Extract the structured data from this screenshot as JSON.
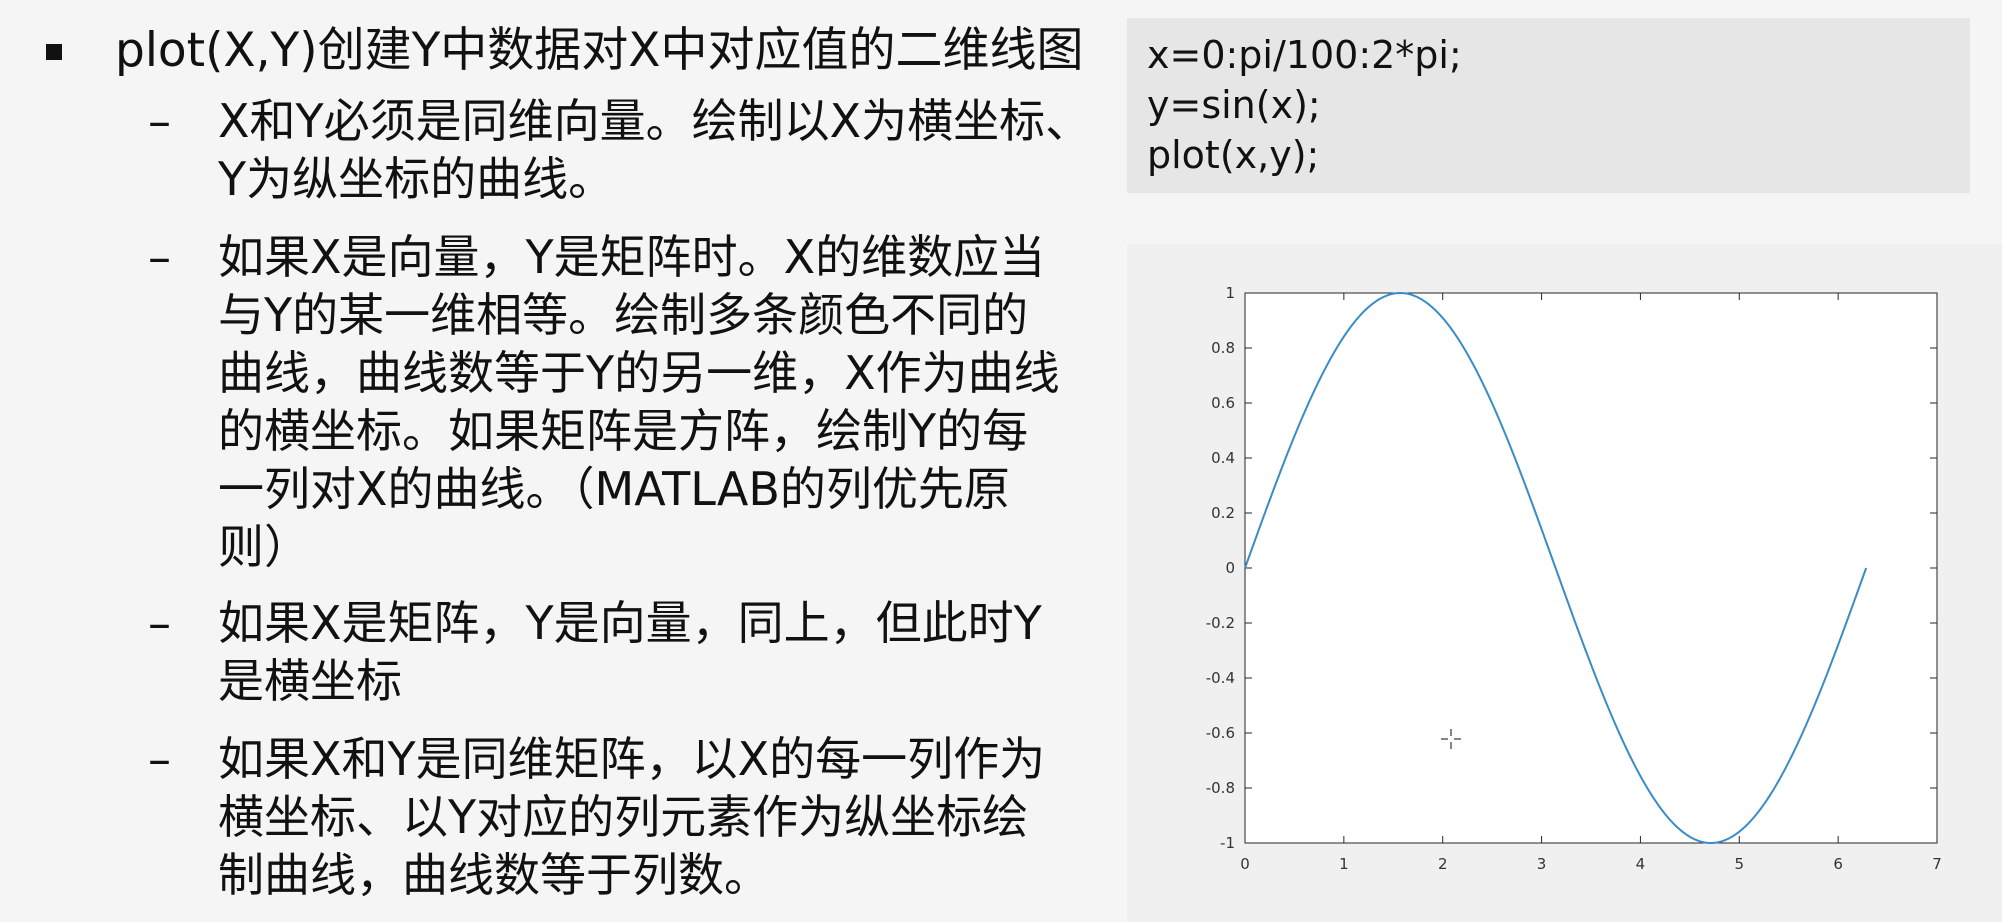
{
  "main_bullet": {
    "text": "plot(X,Y)创建Y中数据对X中对应值的二维线图"
  },
  "sub_bullets": [
    {
      "dash": "–",
      "lines": [
        "X和Y必须是同维向量。绘制以X为横坐标、",
        "Y为纵坐标的曲线。"
      ]
    },
    {
      "dash": "–",
      "lines": [
        "如果X是向量，Y是矩阵时。X的维数应当",
        "与Y的某一维相等。绘制多条颜色不同的",
        "曲线，曲线数等于Y的另一维，X作为曲线",
        "的横坐标。如果矩阵是方阵，绘制Y的每",
        "一列对X的曲线。（MATLAB的列优先原",
        "则）"
      ]
    },
    {
      "dash": "–",
      "lines": [
        "如果X是矩阵，Y是向量，同上，但此时Y",
        "是横坐标"
      ]
    },
    {
      "dash": "–",
      "lines": [
        "如果X和Y是同维矩阵，以X的每一列作为",
        "横坐标、以Y对应的列元素作为纵坐标绘",
        "制曲线，曲线数等于列数。"
      ]
    }
  ],
  "code": {
    "lines": [
      "x=0:pi/100:2*pi;",
      "y=sin(x);",
      "plot(x,y);"
    ]
  },
  "chart_data": {
    "type": "line",
    "title": "",
    "xlabel": "",
    "ylabel": "",
    "xlim": [
      0,
      7
    ],
    "ylim": [
      -1,
      1
    ],
    "x_ticks": [
      0,
      1,
      2,
      3,
      4,
      5,
      6,
      7
    ],
    "x_tick_labels": [
      "0",
      "1",
      "2",
      "3",
      "4",
      "5",
      "6",
      "7"
    ],
    "y_ticks": [
      1,
      0.8,
      0.6,
      0.4,
      0.2,
      0,
      -0.2,
      -0.4,
      -0.6,
      -0.8,
      -1
    ],
    "y_tick_labels": [
      "1",
      "0.8",
      "0.6",
      "0.4",
      "0.2",
      "0",
      "-0.2",
      "-0.4",
      "-0.6",
      "-0.8",
      "-1"
    ],
    "grid": false,
    "series": [
      {
        "name": "y=sin(x)",
        "function": "sin",
        "x_start": 0,
        "x_end": 6.2832,
        "x_step": 0.031416,
        "color": "#3a8cc8"
      }
    ]
  },
  "colors": {
    "line": "#3a8cc8",
    "code_bg": "#e6e6e6",
    "background": "#f5f5f5"
  }
}
